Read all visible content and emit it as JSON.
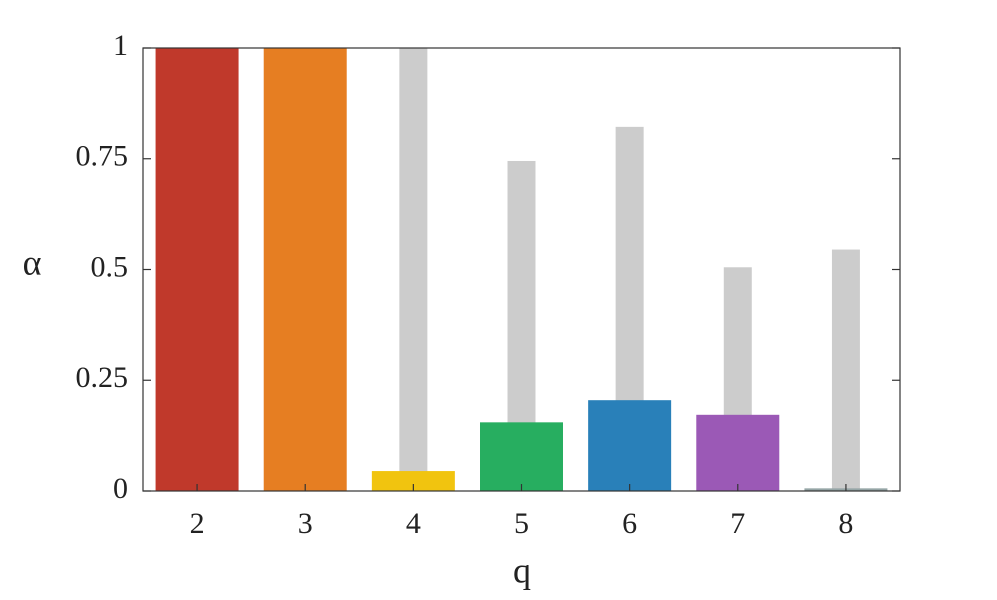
{
  "chart_data": {
    "type": "bar",
    "x_label": "q",
    "y_label": "α",
    "categories": [
      "2",
      "3",
      "4",
      "5",
      "6",
      "7",
      "8"
    ],
    "series": [
      {
        "color": "#cccccc",
        "values": [
          null,
          null,
          1.0,
          0.745,
          0.822,
          0.505,
          0.545
        ]
      },
      {
        "colors": [
          "#c0392b",
          "#e67e22",
          "#f1c40f",
          "#27ae60",
          "#2980b9",
          "#9b59b6",
          "#95a5a6"
        ],
        "values": [
          1.0,
          1.0,
          0.045,
          0.155,
          0.205,
          0.172,
          0.006
        ]
      }
    ],
    "ylim": [
      0,
      1
    ],
    "yticks": [
      0,
      0.25,
      0.5,
      0.75,
      1
    ]
  }
}
